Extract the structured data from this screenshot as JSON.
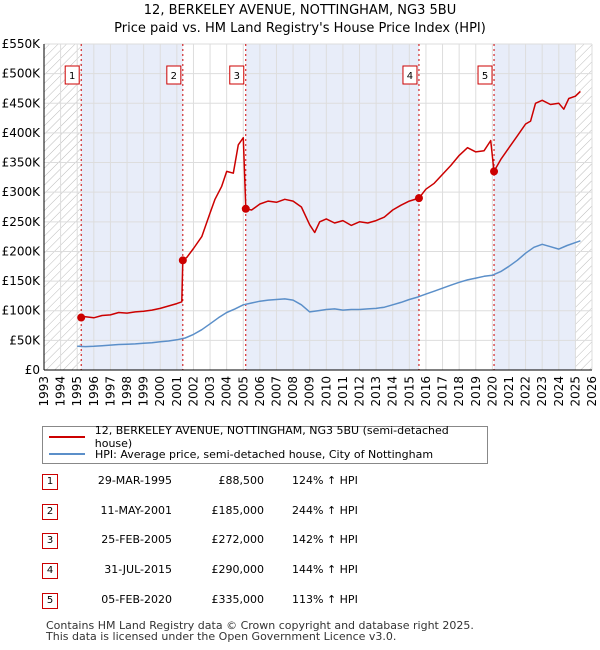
{
  "chart_data": {
    "type": "line",
    "title": "12, BERKELEY AVENUE, NOTTINGHAM, NG3 5BU",
    "subtitle": "Price paid vs. HM Land Registry's House Price Index (HPI)",
    "xlim": [
      1993,
      2026
    ],
    "ylim": [
      0,
      550000
    ],
    "x_ticks": [
      "1993",
      "1994",
      "1995",
      "1996",
      "1997",
      "1998",
      "1999",
      "2000",
      "2001",
      "2002",
      "2003",
      "2004",
      "2005",
      "2006",
      "2007",
      "2008",
      "2009",
      "2010",
      "2011",
      "2012",
      "2013",
      "2014",
      "2015",
      "2016",
      "2017",
      "2018",
      "2019",
      "2020",
      "2021",
      "2022",
      "2023",
      "2024",
      "2025",
      "2026"
    ],
    "y_ticks": [
      {
        "value": 0,
        "label": "£0"
      },
      {
        "value": 50000,
        "label": "£50K"
      },
      {
        "value": 100000,
        "label": "£100K"
      },
      {
        "value": 150000,
        "label": "£150K"
      },
      {
        "value": 200000,
        "label": "£200K"
      },
      {
        "value": 250000,
        "label": "£250K"
      },
      {
        "value": 300000,
        "label": "£300K"
      },
      {
        "value": 350000,
        "label": "£350K"
      },
      {
        "value": 400000,
        "label": "£400K"
      },
      {
        "value": 450000,
        "label": "£450K"
      },
      {
        "value": 500000,
        "label": "£500K"
      },
      {
        "value": 550000,
        "label": "£550K"
      }
    ],
    "hatch_before": 1995.24,
    "hatch_after": 2025.0,
    "sale_markers": [
      {
        "n": "1",
        "x": 1995.24,
        "price": 88500
      },
      {
        "n": "2",
        "x": 2001.36,
        "price": 185000
      },
      {
        "n": "3",
        "x": 2005.15,
        "price": 272000
      },
      {
        "n": "4",
        "x": 2015.58,
        "price": 290000
      },
      {
        "n": "5",
        "x": 2020.1,
        "price": 335000
      }
    ],
    "series": [
      {
        "name": "12, BERKELEY AVENUE, NOTTINGHAM, NG3 5BU (semi-detached house)",
        "color": "#cc0000",
        "x": [
          1995.24,
          1995.5,
          1996.0,
          1996.5,
          1997.0,
          1997.5,
          1998.0,
          1998.5,
          1999.0,
          1999.5,
          2000.0,
          2000.5,
          2001.0,
          2001.3,
          2001.36,
          2001.6,
          2002.0,
          2002.5,
          2003.0,
          2003.3,
          2003.7,
          2004.0,
          2004.4,
          2004.7,
          2005.0,
          2005.15,
          2005.5,
          2006.0,
          2006.5,
          2007.0,
          2007.5,
          2008.0,
          2008.5,
          2009.0,
          2009.3,
          2009.6,
          2010.0,
          2010.5,
          2011.0,
          2011.5,
          2012.0,
          2012.5,
          2013.0,
          2013.5,
          2014.0,
          2014.5,
          2015.0,
          2015.58,
          2016.0,
          2016.5,
          2017.0,
          2017.5,
          2018.0,
          2018.5,
          2019.0,
          2019.5,
          2019.9,
          2020.1,
          2020.5,
          2021.0,
          2021.5,
          2022.0,
          2022.3,
          2022.6,
          2023.0,
          2023.5,
          2024.0,
          2024.3,
          2024.6,
          2025.0,
          2025.3
        ],
        "values": [
          88500,
          90000,
          88000,
          92000,
          93000,
          97000,
          96000,
          98000,
          99000,
          101000,
          104000,
          108000,
          112000,
          115000,
          185000,
          190000,
          205000,
          225000,
          265000,
          288000,
          310000,
          335000,
          332000,
          380000,
          392000,
          272000,
          270000,
          280000,
          285000,
          283000,
          288000,
          285000,
          275000,
          245000,
          232000,
          250000,
          255000,
          248000,
          252000,
          244000,
          250000,
          248000,
          252000,
          258000,
          270000,
          278000,
          285000,
          290000,
          305000,
          315000,
          330000,
          345000,
          362000,
          375000,
          368000,
          370000,
          387000,
          335000,
          355000,
          375000,
          395000,
          415000,
          420000,
          450000,
          455000,
          448000,
          450000,
          440000,
          458000,
          462000,
          470000
        ]
      },
      {
        "name": "HPI: Average price, semi-detached house, City of Nottingham",
        "color": "#5b8fc9",
        "x": [
          1995.0,
          1995.5,
          1996.0,
          1996.5,
          1997.0,
          1997.5,
          1998.0,
          1998.5,
          1999.0,
          1999.5,
          2000.0,
          2000.5,
          2001.0,
          2001.5,
          2002.0,
          2002.5,
          2003.0,
          2003.5,
          2004.0,
          2004.5,
          2005.0,
          2005.5,
          2006.0,
          2006.5,
          2007.0,
          2007.5,
          2008.0,
          2008.5,
          2009.0,
          2009.5,
          2010.0,
          2010.5,
          2011.0,
          2011.5,
          2012.0,
          2012.5,
          2013.0,
          2013.5,
          2014.0,
          2014.5,
          2015.0,
          2015.5,
          2016.0,
          2016.5,
          2017.0,
          2017.5,
          2018.0,
          2018.5,
          2019.0,
          2019.5,
          2020.0,
          2020.5,
          2021.0,
          2021.5,
          2022.0,
          2022.5,
          2023.0,
          2023.5,
          2024.0,
          2024.5,
          2025.0,
          2025.3
        ],
        "values": [
          40000,
          39500,
          40000,
          41000,
          42000,
          43000,
          43500,
          44000,
          45000,
          46000,
          47500,
          49000,
          51000,
          54000,
          60000,
          68000,
          78000,
          88000,
          97000,
          103000,
          110000,
          113000,
          116000,
          118000,
          119000,
          120000,
          118000,
          110000,
          98000,
          100000,
          102000,
          103000,
          101000,
          102000,
          102000,
          103000,
          104000,
          106000,
          110000,
          114000,
          119000,
          123000,
          128000,
          133000,
          138000,
          143000,
          148000,
          152000,
          155000,
          158000,
          160000,
          166000,
          175000,
          185000,
          197000,
          207000,
          212000,
          208000,
          204000,
          210000,
          215000,
          218000
        ]
      }
    ]
  },
  "legend": {
    "property_label": "12, BERKELEY AVENUE, NOTTINGHAM, NG3 5BU (semi-detached house)",
    "hpi_label": "HPI: Average price, semi-detached house, City of Nottingham",
    "property_color": "#cc0000",
    "hpi_color": "#5b8fc9"
  },
  "sales": [
    {
      "n": "1",
      "date": "29-MAR-1995",
      "price": "£88,500",
      "hpi": "124% ↑ HPI"
    },
    {
      "n": "2",
      "date": "11-MAY-2001",
      "price": "£185,000",
      "hpi": "244% ↑ HPI"
    },
    {
      "n": "3",
      "date": "25-FEB-2005",
      "price": "£272,000",
      "hpi": "142% ↑ HPI"
    },
    {
      "n": "4",
      "date": "31-JUL-2015",
      "price": "£290,000",
      "hpi": "144% ↑ HPI"
    },
    {
      "n": "5",
      "date": "05-FEB-2020",
      "price": "£335,000",
      "hpi": "113% ↑ HPI"
    }
  ],
  "footer": {
    "line1": "Contains HM Land Registry data © Crown copyright and database right 2025.",
    "line2": "This data is licensed under the Open Government Licence v3.0."
  }
}
